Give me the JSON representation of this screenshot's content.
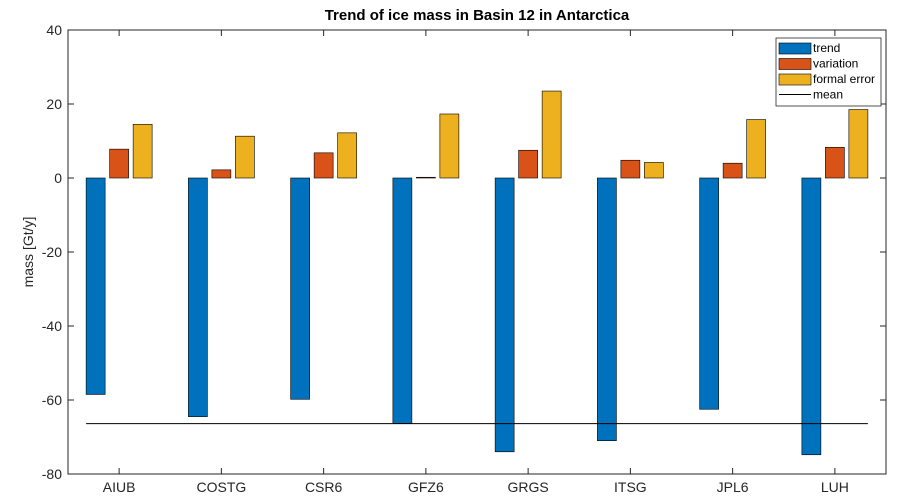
{
  "chart_data": {
    "type": "bar",
    "title": "Trend of ice mass in Basin 12 in Antarctica",
    "xlabel": "",
    "ylabel": "mass [Gt/y]",
    "ylim": [
      -80,
      40
    ],
    "yticks": [
      -80,
      -60,
      -40,
      -20,
      0,
      20,
      40
    ],
    "grid": "off",
    "legend_position": "top-right",
    "categories": [
      "AIUB",
      "COSTG",
      "CSR6",
      "GFZ6",
      "GRGS",
      "ITSG",
      "JPL6",
      "LUH"
    ],
    "series": [
      {
        "name": "trend",
        "color": "#0072BD",
        "values": [
          -58.5,
          -64.5,
          -59.8,
          -66.3,
          -74.0,
          -71.0,
          -62.5,
          -74.8
        ]
      },
      {
        "name": "variation",
        "color": "#D95319",
        "values": [
          7.8,
          2.2,
          6.8,
          0.2,
          7.5,
          4.8,
          4.0,
          8.3
        ]
      },
      {
        "name": "formal error",
        "color": "#EDB120",
        "values": [
          14.5,
          11.3,
          12.2,
          17.3,
          23.5,
          4.2,
          15.8,
          18.5
        ]
      }
    ],
    "mean_line": {
      "name": "mean",
      "value": -66.4,
      "color": "#000000"
    }
  }
}
